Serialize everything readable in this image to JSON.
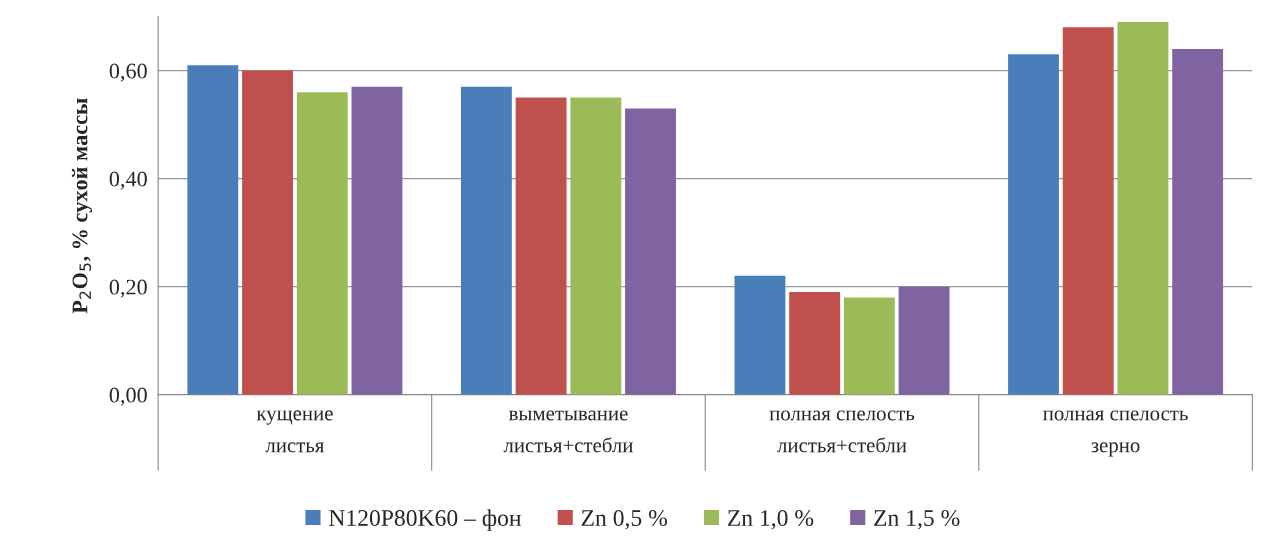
{
  "chart_data": {
    "type": "bar",
    "ylabel": "P$_{2}$O$_{5}$, % сухой массы",
    "categories": [
      "кущение\nлистья",
      "выметывание\nлистья+стебли",
      "полная спелость\nлистья+стебли",
      "полная спелость\nзерно"
    ],
    "series": [
      {
        "name": "N120P80K60 – фон",
        "color": "#4a7ebb",
        "values": [
          0.61,
          0.57,
          0.22,
          0.63
        ]
      },
      {
        "name": "Zn 0,5 %",
        "color": "#c0504d",
        "values": [
          0.6,
          0.55,
          0.19,
          0.68
        ]
      },
      {
        "name": "Zn 1,0 %",
        "color": "#9bbb59",
        "values": [
          0.56,
          0.55,
          0.18,
          0.69
        ]
      },
      {
        "name": "Zn 1,5 %",
        "color": "#8064a2",
        "values": [
          0.57,
          0.53,
          0.2,
          0.64
        ]
      }
    ],
    "ylim": [
      0,
      0.7
    ],
    "yticks": [
      {
        "value": 0,
        "label": "0,00"
      },
      {
        "value": 0.2,
        "label": "0,20"
      },
      {
        "value": 0.4,
        "label": "0,40"
      },
      {
        "value": 0.6,
        "label": "0,60"
      }
    ],
    "grid": "y",
    "legend": "bottom"
  }
}
